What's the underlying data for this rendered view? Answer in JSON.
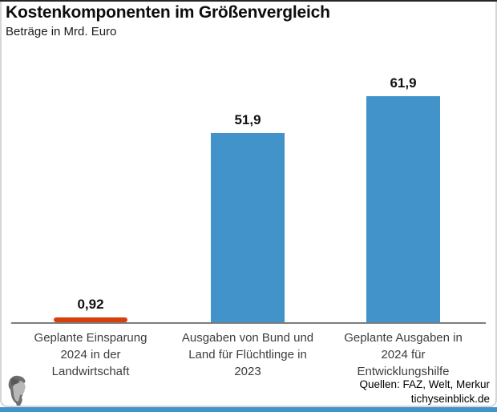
{
  "header": {
    "title": "Kostenkomponenten im Größenvergleich",
    "subtitle": "Beträge in Mrd. Euro"
  },
  "chart_data": {
    "type": "bar",
    "title": "Kostenkomponenten im Größenvergleich",
    "subtitle": "Beträge in Mrd. Euro",
    "unit": "Mrd. Euro",
    "categories": [
      "Geplante Einsparung 2024 in der Landwirtschaft",
      "Ausgaben von Bund und Land für Flüchtlinge in 2023",
      "Geplante Ausgaben in 2024 für Entwicklungshilfe"
    ],
    "categories_lines": [
      [
        "Geplante Einsparung",
        "2024 in der",
        "Landwirtschaft"
      ],
      [
        "Ausgaben von Bund und",
        "Land für Flüchtlinge in",
        "2023"
      ],
      [
        "Geplante Ausgaben in",
        "2024 für",
        "Entwicklungshilfe"
      ]
    ],
    "values": [
      0.92,
      51.9,
      61.9
    ],
    "value_labels": [
      "0,92",
      "51,9",
      "61,9"
    ],
    "bar_colors": [
      "#d6400d",
      "#4293c9",
      "#4293c9"
    ],
    "ylim": [
      0,
      66
    ],
    "grid": false,
    "legend": false
  },
  "footer": {
    "sources": "Quellen: FAZ, Welt, Merkur",
    "site": "tichyseinblick.de",
    "logo": "mercury-head-logo"
  },
  "colors": {
    "bar_blue": "#4293c9",
    "bar_red": "#d6400d",
    "axis": "#7d7d7d",
    "category_text": "#3d3d3d",
    "accent_strip": "#4293c9",
    "top_bar": "#262626",
    "frame_border": "#d6d6d6"
  }
}
